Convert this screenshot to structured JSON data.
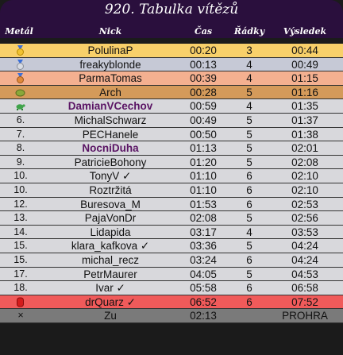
{
  "title": "920. Tabulka vítězů",
  "headers": {
    "medal": "Metál",
    "nick": "Nick",
    "time": "Čas",
    "lines": "Řádky",
    "result": "Výsledek"
  },
  "rows": [
    {
      "rank": "",
      "medal": "gold-medal-icon",
      "nick": "PolulinaP",
      "time": "00:20",
      "lines": "3",
      "result": "00:44",
      "style": "gold"
    },
    {
      "rank": "",
      "medal": "silver-medal-icon",
      "nick": "freakyblonde",
      "time": "00:13",
      "lines": "4",
      "result": "00:49",
      "style": "silver"
    },
    {
      "rank": "",
      "medal": "bronze-medal-icon",
      "nick": "ParmaTomas",
      "time": "00:39",
      "lines": "4",
      "result": "01:15",
      "style": "bronze"
    },
    {
      "rank": "",
      "medal": "potato-icon",
      "nick": "Arch",
      "time": "00:28",
      "lines": "5",
      "result": "01:16",
      "style": "fourth"
    },
    {
      "rank": "",
      "medal": "turtle-icon",
      "nick": "DamianVCechov",
      "time": "00:59",
      "lines": "4",
      "result": "01:35",
      "style": "plain",
      "bold": true
    },
    {
      "rank": "6.",
      "nick": "MichalSchwarz",
      "time": "00:49",
      "lines": "5",
      "result": "01:37",
      "style": "plain"
    },
    {
      "rank": "7.",
      "nick": "PECHanele",
      "time": "00:50",
      "lines": "5",
      "result": "01:38",
      "style": "plain"
    },
    {
      "rank": "8.",
      "nick": "NocniDuha",
      "time": "01:13",
      "lines": "5",
      "result": "02:01",
      "style": "plain",
      "bold": true
    },
    {
      "rank": "9.",
      "nick": "PatricieBohony",
      "time": "01:20",
      "lines": "5",
      "result": "02:08",
      "style": "plain"
    },
    {
      "rank": "10.",
      "nick": "TonyV ✓",
      "time": "01:10",
      "lines": "6",
      "result": "02:10",
      "style": "plain"
    },
    {
      "rank": "10.",
      "nick": "Roztržitá",
      "time": "01:10",
      "lines": "6",
      "result": "02:10",
      "style": "plain"
    },
    {
      "rank": "12.",
      "nick": "Buresova_M",
      "time": "01:53",
      "lines": "6",
      "result": "02:53",
      "style": "plain"
    },
    {
      "rank": "13.",
      "nick": "PajaVonDr",
      "time": "02:08",
      "lines": "5",
      "result": "02:56",
      "style": "plain"
    },
    {
      "rank": "14.",
      "nick": "Lidapida",
      "time": "03:17",
      "lines": "4",
      "result": "03:53",
      "style": "plain"
    },
    {
      "rank": "15.",
      "nick": "klara_kafkova ✓",
      "time": "03:36",
      "lines": "5",
      "result": "04:24",
      "style": "plain"
    },
    {
      "rank": "15.",
      "nick": "michal_recz",
      "time": "03:24",
      "lines": "6",
      "result": "04:24",
      "style": "plain"
    },
    {
      "rank": "17.",
      "nick": "PetrMaurer",
      "time": "04:05",
      "lines": "5",
      "result": "04:53",
      "style": "plain"
    },
    {
      "rank": "18.",
      "nick": "Ivar ✓",
      "time": "05:58",
      "lines": "6",
      "result": "06:58",
      "style": "plain"
    },
    {
      "rank": "",
      "medal": "red-barrel-icon",
      "nick": "drQuarz ✓",
      "time": "06:52",
      "lines": "6",
      "result": "07:52",
      "style": "red"
    },
    {
      "rank": "×",
      "nick": "Zu",
      "time": "02:13",
      "lines": "",
      "result": "PROHRA",
      "style": "last"
    }
  ]
}
